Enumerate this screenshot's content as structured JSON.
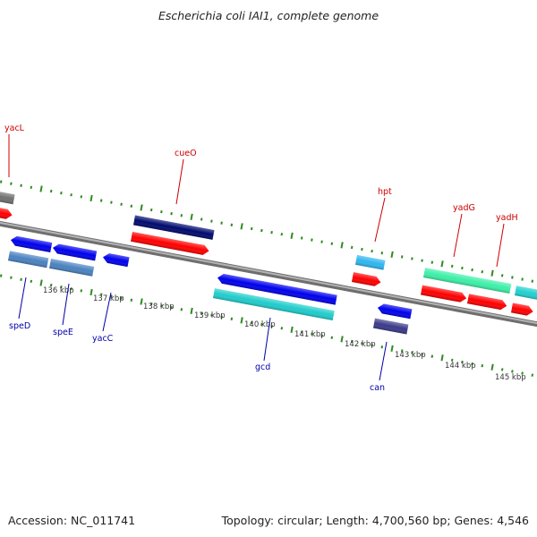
{
  "title": "Escherichia coli IAI1, complete genome",
  "footer": {
    "accession_label": "Accession:",
    "accession": "NC_011741",
    "topology_label": "Topology:",
    "topology": "circular",
    "length_label": "Length:",
    "length": "4,700,560 bp",
    "genes_label": "Genes:",
    "genes": "4,546"
  },
  "colors": {
    "backbone": "#8c8c8c",
    "tick_ring": "#2e8b1f",
    "forward_label": "#cc0000",
    "reverse_label": "#0000aa"
  },
  "scale": {
    "unit": "kbp",
    "labels": [
      "136 kbp",
      "137 kbp",
      "138 kbp",
      "139 kbp",
      "140 kbp",
      "141 kbp",
      "142 kbp",
      "143 kbp",
      "144 kbp",
      "145 kbp"
    ]
  },
  "forward_labels": [
    {
      "name": "yacL",
      "color": "#cc0000"
    },
    {
      "name": "cueO",
      "color": "#cc0000"
    },
    {
      "name": "hpt",
      "color": "#cc0000"
    },
    {
      "name": "yadG",
      "color": "#cc0000"
    },
    {
      "name": "yadH",
      "color": "#cc0000"
    }
  ],
  "reverse_labels": [
    {
      "name": "speD",
      "color": "#0000aa"
    },
    {
      "name": "speE",
      "color": "#0000aa"
    },
    {
      "name": "yacC",
      "color": "#0000aa"
    },
    {
      "name": "gcd",
      "color": "#0000aa"
    },
    {
      "name": "can",
      "color": "#0000aa"
    }
  ],
  "features": [
    {
      "strand": "forward",
      "color": "#707070",
      "kind": "cds"
    },
    {
      "strand": "forward",
      "color": "#ff0000",
      "kind": "cds"
    },
    {
      "strand": "forward",
      "color": "#000a6e",
      "kind": "gene"
    },
    {
      "strand": "forward",
      "color": "#ff0000",
      "kind": "cds"
    },
    {
      "strand": "forward",
      "color": "#2eb6f0",
      "kind": "gene"
    },
    {
      "strand": "forward",
      "color": "#ff0000",
      "kind": "cds"
    },
    {
      "strand": "forward",
      "color": "#3cf0a8",
      "kind": "gene"
    },
    {
      "strand": "forward",
      "color": "#ff0000",
      "kind": "cds"
    },
    {
      "strand": "forward",
      "color": "#ff0000",
      "kind": "cds"
    },
    {
      "strand": "forward",
      "color": "#ff0000",
      "kind": "cds"
    },
    {
      "strand": "forward",
      "color": "#20d0d0",
      "kind": "gene"
    },
    {
      "strand": "reverse",
      "color": "#0000ee",
      "kind": "cds"
    },
    {
      "strand": "reverse",
      "color": "#0000ee",
      "kind": "cds"
    },
    {
      "strand": "reverse",
      "color": "#0000ee",
      "kind": "cds"
    },
    {
      "strand": "reverse",
      "color": "#4a82c0",
      "kind": "gene"
    },
    {
      "strand": "reverse",
      "color": "#4a82c0",
      "kind": "gene"
    },
    {
      "strand": "reverse",
      "color": "#0000ee",
      "kind": "cds"
    },
    {
      "strand": "reverse",
      "color": "#20cccc",
      "kind": "gene"
    },
    {
      "strand": "reverse",
      "color": "#0000ee",
      "kind": "cds"
    },
    {
      "strand": "reverse",
      "color": "#3a3a8a",
      "kind": "gene"
    }
  ]
}
